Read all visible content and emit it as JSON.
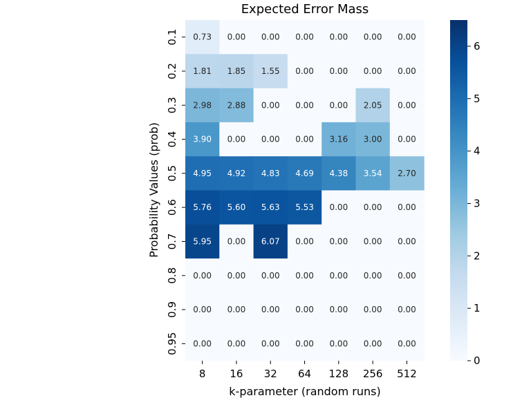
{
  "chart_data": {
    "type": "heatmap",
    "title": "Expected Error Mass",
    "xlabel": "k-parameter (random runs)",
    "ylabel": "Probability Values (prob)",
    "x_categories": [
      "8",
      "16",
      "32",
      "64",
      "128",
      "256",
      "512"
    ],
    "y_categories": [
      "0.1",
      "0.2",
      "0.3",
      "0.4",
      "0.5",
      "0.6",
      "0.7",
      "0.8",
      "0.9",
      "0.95"
    ],
    "values": [
      [
        0.73,
        0.0,
        0.0,
        0.0,
        0.0,
        0.0,
        0.0
      ],
      [
        1.81,
        1.85,
        1.55,
        0.0,
        0.0,
        0.0,
        0.0
      ],
      [
        2.98,
        2.88,
        0.0,
        0.0,
        0.0,
        2.05,
        0.0
      ],
      [
        3.9,
        0.0,
        0.0,
        0.0,
        3.16,
        3.0,
        0.0
      ],
      [
        4.95,
        4.92,
        4.83,
        4.69,
        4.38,
        3.54,
        2.7
      ],
      [
        5.76,
        5.6,
        5.63,
        5.53,
        0.0,
        0.0,
        0.0
      ],
      [
        5.95,
        0.0,
        6.07,
        0.0,
        0.0,
        0.0,
        0.0
      ],
      [
        0.0,
        0.0,
        0.0,
        0.0,
        0.0,
        0.0,
        0.0
      ],
      [
        0.0,
        0.0,
        0.0,
        0.0,
        0.0,
        0.0,
        0.0
      ],
      [
        0.0,
        0.0,
        0.0,
        0.0,
        0.0,
        0.0,
        0.0
      ]
    ],
    "value_format_decimals": 2,
    "colormap": "Blues",
    "vmin": 0,
    "vmax": 6.5,
    "colorbar_ticks": [
      0,
      1,
      2,
      3,
      4,
      5,
      6
    ],
    "grid": false
  }
}
